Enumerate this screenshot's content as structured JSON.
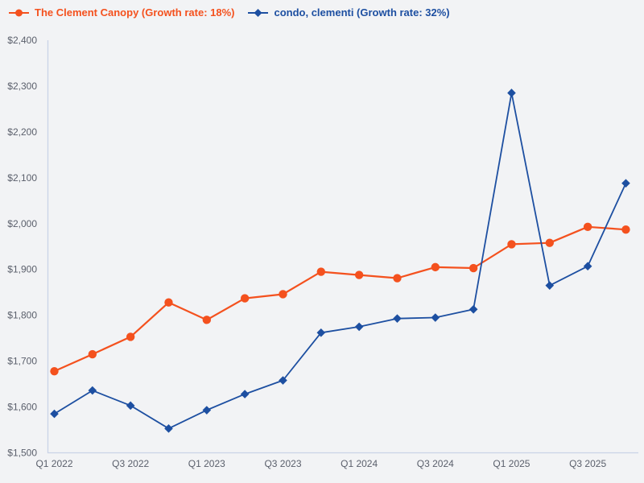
{
  "legend": {
    "items": [
      {
        "label": "The Clement Canopy (Growth rate: 18%)",
        "marker": "circle",
        "color": "#f4511e"
      },
      {
        "label": "condo, clementi (Growth rate: 32%)",
        "marker": "diamond",
        "color": "#1d4fa1"
      }
    ]
  },
  "chart_data": {
    "type": "line",
    "categories": [
      "Q1 2022",
      "Q2 2022",
      "Q3 2022",
      "Q4 2022",
      "Q1 2023",
      "Q2 2023",
      "Q3 2023",
      "Q4 2023",
      "Q1 2024",
      "Q2 2024",
      "Q3 2024",
      "Q4 2024",
      "Q1 2025",
      "Q2 2025",
      "Q3 2025",
      "Q4 2025"
    ],
    "x_tick_labels": [
      "Q1 2022",
      "Q3 2022",
      "Q1 2023",
      "Q3 2023",
      "Q1 2024",
      "Q3 2024",
      "Q1 2025",
      "Q3 2025"
    ],
    "series": [
      {
        "name": "The Clement Canopy (Growth rate: 18%)",
        "color": "#f4511e",
        "marker": "circle",
        "values": [
          1678,
          1715,
          1753,
          1828,
          1790,
          1837,
          1846,
          1895,
          1888,
          1881,
          1905,
          1903,
          1955,
          1958,
          1993,
          1987
        ]
      },
      {
        "name": "condo, clementi (Growth rate: 32%)",
        "color": "#1d4fa1",
        "marker": "diamond",
        "values": [
          1585,
          1636,
          1603,
          1553,
          1593,
          1628,
          1658,
          1762,
          1775,
          1793,
          1795,
          1813,
          2285,
          1865,
          1907,
          2088
        ]
      }
    ],
    "title": "",
    "xlabel": "",
    "ylabel": "",
    "ylim": [
      1500,
      2400
    ],
    "ytick_step": 100,
    "ytick_labels": [
      "$1,500",
      "$1,600",
      "$1,700",
      "$1,800",
      "$1,900",
      "$2,000",
      "$2,100",
      "$2,200",
      "$2,300",
      "$2,400"
    ],
    "currency_prefix": "$",
    "grid": false,
    "legend_position": "top-left",
    "colors": {
      "background": "#f2f3f5",
      "axis_line": "#c9d3e6",
      "tick_label": "#5a5f6b"
    }
  }
}
